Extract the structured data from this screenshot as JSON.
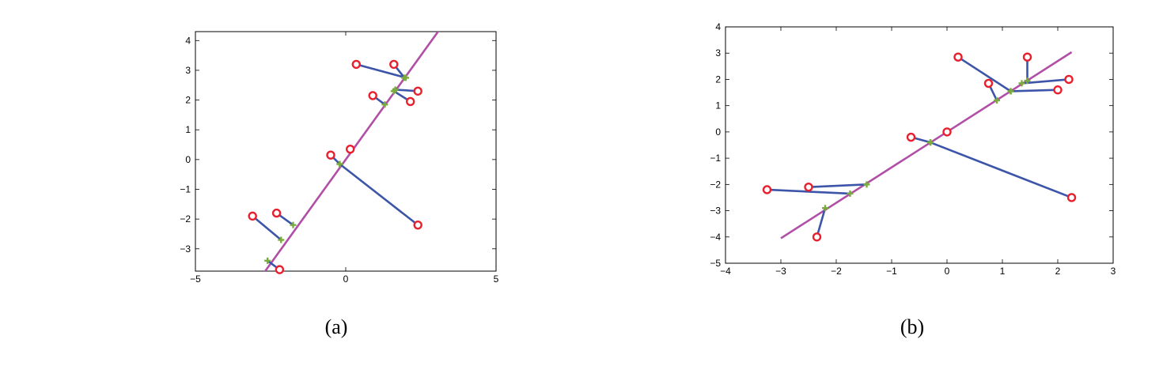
{
  "chart_data": [
    {
      "type": "scatter",
      "caption": "(a)",
      "title": "",
      "xlabel": "",
      "ylabel": "",
      "xlim": [
        -5,
        5
      ],
      "ylim": [
        -3.75,
        4.3
      ],
      "xticks": [
        -5,
        0,
        5
      ],
      "yticks": [
        -3,
        -2,
        -1,
        0,
        1,
        2,
        3,
        4
      ],
      "grid": false,
      "line": {
        "slope": 1.4,
        "intercept": 0.0
      },
      "points": [
        {
          "x": 0.35,
          "y": 3.2,
          "px": 2.0,
          "py": 2.75
        },
        {
          "x": 1.6,
          "y": 3.2,
          "px": 1.95,
          "py": 2.75
        },
        {
          "x": 0.9,
          "y": 2.15,
          "px": 1.3,
          "py": 1.85
        },
        {
          "x": 2.4,
          "y": 2.3,
          "px": 1.65,
          "py": 2.35
        },
        {
          "x": 2.15,
          "y": 1.95,
          "px": 1.6,
          "py": 2.3
        },
        {
          "x": 0.15,
          "y": 0.35,
          "px": 0.15,
          "py": 0.35
        },
        {
          "x": -0.5,
          "y": 0.15,
          "px": -0.2,
          "py": -0.15
        },
        {
          "x": 2.4,
          "y": -2.2,
          "px": -0.2,
          "py": -0.15
        },
        {
          "x": -3.1,
          "y": -1.9,
          "px": -2.15,
          "py": -2.7
        },
        {
          "x": -2.3,
          "y": -1.8,
          "px": -1.75,
          "py": -2.2
        },
        {
          "x": -2.2,
          "y": -3.7,
          "px": -2.6,
          "py": -3.4
        }
      ]
    },
    {
      "type": "scatter",
      "caption": "(b)",
      "title": "",
      "xlabel": "",
      "ylabel": "",
      "xlim": [
        -4,
        3
      ],
      "ylim": [
        -5,
        4
      ],
      "xticks": [
        -4,
        -3,
        -2,
        -1,
        0,
        1,
        2,
        3
      ],
      "yticks": [
        -5,
        -4,
        -3,
        -2,
        -1,
        0,
        1,
        2,
        3,
        4
      ],
      "grid": false,
      "line": {
        "slope": 1.35,
        "intercept": 0.0
      },
      "line_x": [
        -3.0,
        2.25
      ],
      "points": [
        {
          "x": 0.2,
          "y": 2.85,
          "px": 1.15,
          "py": 1.55
        },
        {
          "x": 0.75,
          "y": 1.85,
          "px": 0.9,
          "py": 1.2
        },
        {
          "x": 1.45,
          "y": 2.85,
          "px": 1.45,
          "py": 1.95
        },
        {
          "x": 2.2,
          "y": 2.0,
          "px": 1.35,
          "py": 1.85
        },
        {
          "x": 2.0,
          "y": 1.6,
          "px": 1.15,
          "py": 1.55
        },
        {
          "x": 0.0,
          "y": 0.0,
          "px": 0.0,
          "py": 0.0
        },
        {
          "x": -0.65,
          "y": -0.2,
          "px": -0.3,
          "py": -0.4
        },
        {
          "x": 2.25,
          "y": -2.5,
          "px": -0.3,
          "py": -0.4
        },
        {
          "x": -3.25,
          "y": -2.2,
          "px": -1.75,
          "py": -2.35
        },
        {
          "x": -2.5,
          "y": -2.1,
          "px": -1.45,
          "py": -2.0
        },
        {
          "x": -2.35,
          "y": -4.0,
          "px": -2.2,
          "py": -2.9
        }
      ]
    }
  ]
}
